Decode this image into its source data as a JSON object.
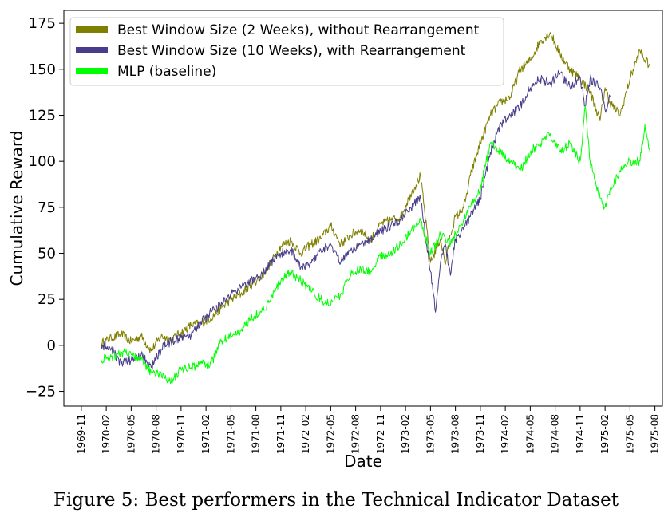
{
  "caption": "Figure 5: Best performers in the Technical Indicator Dataset",
  "chart_data": {
    "type": "line",
    "title": "",
    "xlabel": "Date",
    "ylabel": "Cumulative Reward",
    "x_tick_labels": [
      "1969-11",
      "1970-02",
      "1970-05",
      "1970-08",
      "1970-11",
      "1971-02",
      "1971-05",
      "1971-08",
      "1971-11",
      "1972-02",
      "1972-05",
      "1972-08",
      "1972-11",
      "1973-02",
      "1973-05",
      "1973-08",
      "1973-11",
      "1974-02",
      "1974-05",
      "1974-08",
      "1974-11",
      "1975-02",
      "1975-05",
      "1975-08"
    ],
    "xlim": [
      -0.7,
      23.3
    ],
    "ylim": [
      -33,
      182
    ],
    "y_ticks": [
      -25,
      0,
      25,
      50,
      75,
      100,
      125,
      150,
      175
    ],
    "y_tick_labels": [
      "−25",
      "0",
      "25",
      "50",
      "75",
      "100",
      "125",
      "150",
      "175"
    ],
    "grid": false,
    "legend_position": "top-left",
    "series": [
      {
        "name": "Best Window Size (2 Weeks), without Rearrangement",
        "color": "#808000",
        "x": [
          0.8,
          1.2,
          1.6,
          2.0,
          2.4,
          2.8,
          3.2,
          3.6,
          4.0,
          4.4,
          4.8,
          5.2,
          5.6,
          6.0,
          6.4,
          6.8,
          7.2,
          7.6,
          8.0,
          8.4,
          8.8,
          9.2,
          9.6,
          10.0,
          10.4,
          10.8,
          11.2,
          11.6,
          12.0,
          12.4,
          12.8,
          13.2,
          13.6,
          14.0,
          14.4,
          14.6,
          14.8,
          15.0,
          15.2,
          15.4,
          15.6,
          16.0,
          16.4,
          16.8,
          17.2,
          17.6,
          18.0,
          18.4,
          18.8,
          19.2,
          19.6,
          20.0,
          20.4,
          20.8,
          21.0,
          21.2,
          21.6,
          22.0,
          22.4,
          22.6,
          22.8
        ],
        "y": [
          1,
          4,
          6,
          2,
          5,
          -3,
          5,
          3,
          7,
          11,
          12,
          15,
          20,
          25,
          28,
          33,
          37,
          45,
          54,
          57,
          50,
          55,
          58,
          65,
          55,
          60,
          63,
          57,
          66,
          68,
          70,
          82,
          92,
          45,
          58,
          44,
          60,
          70,
          72,
          78,
          92,
          110,
          125,
          132,
          135,
          150,
          155,
          165,
          170,
          158,
          150,
          145,
          138,
          122,
          140,
          132,
          125,
          145,
          160,
          155,
          152
        ]
      },
      {
        "name": "Best Window Size (10 Weeks), with Rearrangement",
        "color": "#483d8b",
        "x": [
          0.8,
          1.2,
          1.6,
          2.0,
          2.4,
          2.8,
          3.2,
          3.6,
          4.0,
          4.4,
          4.8,
          5.2,
          5.6,
          6.0,
          6.4,
          6.8,
          7.2,
          7.6,
          8.0,
          8.4,
          8.8,
          9.2,
          9.6,
          10.0,
          10.4,
          10.8,
          11.2,
          11.6,
          12.0,
          12.4,
          12.8,
          13.2,
          13.6,
          14.0,
          14.2,
          14.4,
          14.6,
          14.8,
          15.0,
          15.2,
          15.6,
          16.0,
          16.4,
          16.8,
          17.2,
          17.6,
          18.0,
          18.4,
          18.8,
          19.2,
          19.6,
          20.0,
          20.2,
          20.4,
          20.8,
          21.0,
          21.2
        ],
        "y": [
          0,
          -2,
          -10,
          -8,
          -5,
          -12,
          -2,
          2,
          4,
          5,
          13,
          18,
          22,
          28,
          31,
          35,
          38,
          45,
          50,
          52,
          42,
          45,
          52,
          55,
          45,
          52,
          55,
          58,
          62,
          65,
          68,
          75,
          80,
          40,
          18,
          45,
          55,
          38,
          58,
          60,
          70,
          80,
          105,
          120,
          125,
          130,
          140,
          145,
          142,
          148,
          140,
          146,
          130,
          145,
          140,
          128,
          135
        ]
      },
      {
        "name": "MLP (baseline)",
        "color": "#00ff00",
        "x": [
          0.8,
          1.2,
          1.6,
          2.0,
          2.4,
          2.8,
          3.2,
          3.6,
          4.0,
          4.4,
          4.8,
          5.2,
          5.6,
          6.0,
          6.4,
          6.8,
          7.2,
          7.6,
          8.0,
          8.4,
          8.8,
          9.2,
          9.6,
          10.0,
          10.4,
          10.8,
          11.2,
          11.6,
          12.0,
          12.4,
          12.8,
          13.2,
          13.6,
          14.0,
          14.4,
          14.8,
          15.2,
          15.6,
          16.0,
          16.4,
          16.8,
          17.2,
          17.6,
          18.0,
          18.4,
          18.8,
          19.2,
          19.6,
          20.0,
          20.2,
          20.4,
          20.8,
          21.0,
          21.2,
          21.6,
          22.0,
          22.4,
          22.6,
          22.8
        ],
        "y": [
          -8,
          -6,
          -4,
          -5,
          -8,
          -15,
          -15,
          -20,
          -13,
          -12,
          -10,
          -10,
          2,
          5,
          8,
          15,
          18,
          25,
          35,
          40,
          35,
          30,
          25,
          22,
          28,
          38,
          42,
          40,
          48,
          50,
          55,
          62,
          68,
          50,
          60,
          55,
          65,
          75,
          85,
          110,
          105,
          100,
          95,
          105,
          110,
          115,
          105,
          110,
          100,
          130,
          100,
          80,
          75,
          85,
          95,
          100,
          100,
          120,
          105
        ]
      }
    ]
  }
}
